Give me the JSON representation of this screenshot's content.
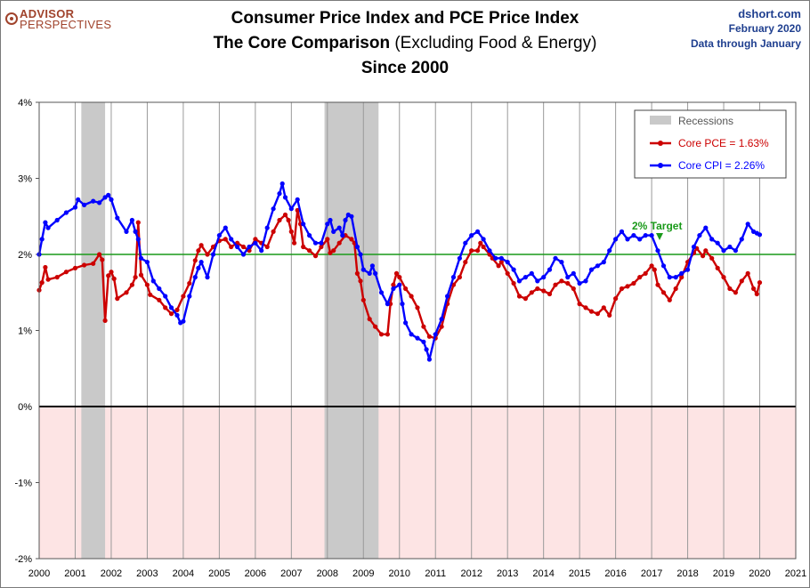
{
  "header": {
    "logo_line1": "ADVISOR",
    "logo_line2": "PERSPECTIVES",
    "title_line1": "Consumer Price Index and PCE Price Index",
    "title_line2_bold": "The Core Comparison",
    "title_line2_rest": " (Excluding Food & Energy)",
    "title_line3": "Since 2000",
    "source_site": "dshort.com",
    "source_date": "February 2020",
    "source_note": "Data through January"
  },
  "colors": {
    "pce": "#cc0000",
    "cpi": "#0000ff",
    "target": "#1a9a1a",
    "recession": "#c9c9c9",
    "negative_zone": "#fde4e4",
    "logo": "#a0432c",
    "source_text": "#1f3f8f"
  },
  "chart_data": {
    "type": "line",
    "x_ticks": [
      "2000",
      "2001",
      "2002",
      "2003",
      "2004",
      "2005",
      "2006",
      "2007",
      "2008",
      "2009",
      "2010",
      "2011",
      "2012",
      "2013",
      "2014",
      "2015",
      "2016",
      "2017",
      "2018",
      "2019",
      "2020",
      "2021"
    ],
    "y_ticks": [
      "-2%",
      "-1%",
      "0%",
      "1%",
      "2%",
      "3%",
      "4%"
    ],
    "xlim": [
      2000,
      2021
    ],
    "ylim": [
      -2,
      4
    ],
    "target_value": 2,
    "target_label": "2% Target",
    "recessions": [
      [
        2001.17,
        2001.83
      ],
      [
        2007.92,
        2009.42
      ]
    ],
    "legend": {
      "position": "top-right",
      "recession_label": "Recessions",
      "pce_label": "Core PCE = 1.63%",
      "cpi_label": "Core CPI = 2.26%"
    },
    "series": [
      {
        "name": "Core PCE",
        "points": [
          [
            2000.0,
            1.53
          ],
          [
            2000.08,
            1.63
          ],
          [
            2000.17,
            1.83
          ],
          [
            2000.25,
            1.67
          ],
          [
            2000.5,
            1.7
          ],
          [
            2000.75,
            1.77
          ],
          [
            2001.0,
            1.82
          ],
          [
            2001.25,
            1.86
          ],
          [
            2001.5,
            1.88
          ],
          [
            2001.67,
            2.0
          ],
          [
            2001.75,
            1.93
          ],
          [
            2001.83,
            1.13
          ],
          [
            2001.92,
            1.72
          ],
          [
            2002.0,
            1.77
          ],
          [
            2002.08,
            1.68
          ],
          [
            2002.17,
            1.42
          ],
          [
            2002.42,
            1.5
          ],
          [
            2002.58,
            1.6
          ],
          [
            2002.67,
            1.7
          ],
          [
            2002.75,
            2.42
          ],
          [
            2002.83,
            1.73
          ],
          [
            2003.0,
            1.6
          ],
          [
            2003.08,
            1.47
          ],
          [
            2003.33,
            1.4
          ],
          [
            2003.5,
            1.3
          ],
          [
            2003.67,
            1.22
          ],
          [
            2003.83,
            1.27
          ],
          [
            2004.0,
            1.45
          ],
          [
            2004.17,
            1.62
          ],
          [
            2004.33,
            1.92
          ],
          [
            2004.42,
            2.05
          ],
          [
            2004.5,
            2.12
          ],
          [
            2004.67,
            2.0
          ],
          [
            2004.83,
            2.1
          ],
          [
            2005.0,
            2.18
          ],
          [
            2005.17,
            2.2
          ],
          [
            2005.33,
            2.1
          ],
          [
            2005.5,
            2.15
          ],
          [
            2005.67,
            2.1
          ],
          [
            2005.83,
            2.05
          ],
          [
            2006.0,
            2.2
          ],
          [
            2006.17,
            2.15
          ],
          [
            2006.33,
            2.1
          ],
          [
            2006.5,
            2.3
          ],
          [
            2006.67,
            2.45
          ],
          [
            2006.83,
            2.52
          ],
          [
            2006.92,
            2.45
          ],
          [
            2007.0,
            2.3
          ],
          [
            2007.08,
            2.15
          ],
          [
            2007.17,
            2.58
          ],
          [
            2007.25,
            2.4
          ],
          [
            2007.33,
            2.1
          ],
          [
            2007.5,
            2.05
          ],
          [
            2007.67,
            1.98
          ],
          [
            2007.83,
            2.1
          ],
          [
            2008.0,
            2.2
          ],
          [
            2008.08,
            2.02
          ],
          [
            2008.17,
            2.05
          ],
          [
            2008.33,
            2.15
          ],
          [
            2008.5,
            2.25
          ],
          [
            2008.67,
            2.2
          ],
          [
            2008.75,
            2.15
          ],
          [
            2008.83,
            1.75
          ],
          [
            2008.92,
            1.65
          ],
          [
            2009.0,
            1.4
          ],
          [
            2009.17,
            1.15
          ],
          [
            2009.33,
            1.05
          ],
          [
            2009.5,
            0.95
          ],
          [
            2009.67,
            0.95
          ],
          [
            2009.75,
            1.35
          ],
          [
            2009.83,
            1.6
          ],
          [
            2009.92,
            1.75
          ],
          [
            2010.0,
            1.7
          ],
          [
            2010.17,
            1.55
          ],
          [
            2010.33,
            1.45
          ],
          [
            2010.5,
            1.3
          ],
          [
            2010.67,
            1.05
          ],
          [
            2010.83,
            0.92
          ],
          [
            2011.0,
            0.9
          ],
          [
            2011.17,
            1.05
          ],
          [
            2011.33,
            1.35
          ],
          [
            2011.5,
            1.6
          ],
          [
            2011.67,
            1.7
          ],
          [
            2011.83,
            1.9
          ],
          [
            2012.0,
            2.05
          ],
          [
            2012.17,
            2.05
          ],
          [
            2012.25,
            2.15
          ],
          [
            2012.33,
            2.1
          ],
          [
            2012.5,
            2.0
          ],
          [
            2012.58,
            1.95
          ],
          [
            2012.75,
            1.85
          ],
          [
            2012.83,
            1.9
          ],
          [
            2013.0,
            1.75
          ],
          [
            2013.17,
            1.62
          ],
          [
            2013.33,
            1.45
          ],
          [
            2013.5,
            1.42
          ],
          [
            2013.67,
            1.5
          ],
          [
            2013.83,
            1.55
          ],
          [
            2014.0,
            1.52
          ],
          [
            2014.17,
            1.48
          ],
          [
            2014.33,
            1.6
          ],
          [
            2014.5,
            1.65
          ],
          [
            2014.67,
            1.62
          ],
          [
            2014.83,
            1.55
          ],
          [
            2015.0,
            1.35
          ],
          [
            2015.17,
            1.3
          ],
          [
            2015.33,
            1.25
          ],
          [
            2015.5,
            1.22
          ],
          [
            2015.67,
            1.3
          ],
          [
            2015.83,
            1.2
          ],
          [
            2016.0,
            1.42
          ],
          [
            2016.17,
            1.55
          ],
          [
            2016.33,
            1.58
          ],
          [
            2016.5,
            1.62
          ],
          [
            2016.67,
            1.7
          ],
          [
            2016.83,
            1.75
          ],
          [
            2017.0,
            1.85
          ],
          [
            2017.08,
            1.8
          ],
          [
            2017.17,
            1.6
          ],
          [
            2017.33,
            1.5
          ],
          [
            2017.5,
            1.4
          ],
          [
            2017.67,
            1.55
          ],
          [
            2017.83,
            1.7
          ],
          [
            2018.0,
            1.9
          ],
          [
            2018.17,
            2.02
          ],
          [
            2018.25,
            2.08
          ],
          [
            2018.42,
            1.98
          ],
          [
            2018.5,
            2.05
          ],
          [
            2018.67,
            1.95
          ],
          [
            2018.83,
            1.82
          ],
          [
            2019.0,
            1.7
          ],
          [
            2019.17,
            1.55
          ],
          [
            2019.33,
            1.5
          ],
          [
            2019.5,
            1.65
          ],
          [
            2019.67,
            1.75
          ],
          [
            2019.83,
            1.55
          ],
          [
            2019.92,
            1.48
          ],
          [
            2020.0,
            1.63
          ]
        ]
      },
      {
        "name": "Core CPI",
        "points": [
          [
            2000.0,
            2.0
          ],
          [
            2000.08,
            2.2
          ],
          [
            2000.17,
            2.42
          ],
          [
            2000.25,
            2.35
          ],
          [
            2000.5,
            2.45
          ],
          [
            2000.75,
            2.55
          ],
          [
            2001.0,
            2.62
          ],
          [
            2001.08,
            2.72
          ],
          [
            2001.25,
            2.65
          ],
          [
            2001.5,
            2.7
          ],
          [
            2001.67,
            2.68
          ],
          [
            2001.83,
            2.75
          ],
          [
            2001.92,
            2.78
          ],
          [
            2002.0,
            2.72
          ],
          [
            2002.17,
            2.48
          ],
          [
            2002.42,
            2.3
          ],
          [
            2002.58,
            2.45
          ],
          [
            2002.67,
            2.3
          ],
          [
            2002.75,
            2.2
          ],
          [
            2002.83,
            1.95
          ],
          [
            2003.0,
            1.9
          ],
          [
            2003.17,
            1.65
          ],
          [
            2003.33,
            1.55
          ],
          [
            2003.5,
            1.45
          ],
          [
            2003.67,
            1.3
          ],
          [
            2003.83,
            1.2
          ],
          [
            2003.92,
            1.1
          ],
          [
            2004.0,
            1.12
          ],
          [
            2004.17,
            1.45
          ],
          [
            2004.33,
            1.7
          ],
          [
            2004.42,
            1.82
          ],
          [
            2004.5,
            1.9
          ],
          [
            2004.67,
            1.7
          ],
          [
            2004.83,
            2.0
          ],
          [
            2005.0,
            2.25
          ],
          [
            2005.17,
            2.35
          ],
          [
            2005.33,
            2.2
          ],
          [
            2005.5,
            2.1
          ],
          [
            2005.67,
            2.0
          ],
          [
            2005.83,
            2.1
          ],
          [
            2006.0,
            2.15
          ],
          [
            2006.17,
            2.05
          ],
          [
            2006.33,
            2.35
          ],
          [
            2006.5,
            2.6
          ],
          [
            2006.67,
            2.8
          ],
          [
            2006.75,
            2.93
          ],
          [
            2006.83,
            2.75
          ],
          [
            2007.0,
            2.6
          ],
          [
            2007.17,
            2.72
          ],
          [
            2007.33,
            2.4
          ],
          [
            2007.5,
            2.25
          ],
          [
            2007.67,
            2.15
          ],
          [
            2007.83,
            2.15
          ],
          [
            2008.0,
            2.4
          ],
          [
            2008.08,
            2.45
          ],
          [
            2008.17,
            2.3
          ],
          [
            2008.33,
            2.35
          ],
          [
            2008.42,
            2.25
          ],
          [
            2008.5,
            2.45
          ],
          [
            2008.58,
            2.52
          ],
          [
            2008.67,
            2.5
          ],
          [
            2008.83,
            2.1
          ],
          [
            2008.92,
            2.0
          ],
          [
            2009.0,
            1.8
          ],
          [
            2009.17,
            1.75
          ],
          [
            2009.25,
            1.85
          ],
          [
            2009.33,
            1.75
          ],
          [
            2009.5,
            1.5
          ],
          [
            2009.67,
            1.35
          ],
          [
            2009.83,
            1.55
          ],
          [
            2010.0,
            1.6
          ],
          [
            2010.08,
            1.35
          ],
          [
            2010.17,
            1.1
          ],
          [
            2010.33,
            0.95
          ],
          [
            2010.5,
            0.9
          ],
          [
            2010.67,
            0.85
          ],
          [
            2010.75,
            0.75
          ],
          [
            2010.83,
            0.62
          ],
          [
            2011.0,
            0.95
          ],
          [
            2011.17,
            1.15
          ],
          [
            2011.33,
            1.45
          ],
          [
            2011.5,
            1.7
          ],
          [
            2011.67,
            1.95
          ],
          [
            2011.83,
            2.15
          ],
          [
            2012.0,
            2.25
          ],
          [
            2012.17,
            2.3
          ],
          [
            2012.33,
            2.2
          ],
          [
            2012.5,
            2.05
          ],
          [
            2012.67,
            1.95
          ],
          [
            2012.83,
            1.95
          ],
          [
            2013.0,
            1.9
          ],
          [
            2013.17,
            1.8
          ],
          [
            2013.33,
            1.65
          ],
          [
            2013.5,
            1.7
          ],
          [
            2013.67,
            1.75
          ],
          [
            2013.83,
            1.65
          ],
          [
            2014.0,
            1.7
          ],
          [
            2014.17,
            1.8
          ],
          [
            2014.33,
            1.95
          ],
          [
            2014.5,
            1.9
          ],
          [
            2014.67,
            1.7
          ],
          [
            2014.83,
            1.75
          ],
          [
            2015.0,
            1.62
          ],
          [
            2015.17,
            1.65
          ],
          [
            2015.33,
            1.8
          ],
          [
            2015.5,
            1.85
          ],
          [
            2015.67,
            1.9
          ],
          [
            2015.83,
            2.05
          ],
          [
            2016.0,
            2.2
          ],
          [
            2016.17,
            2.3
          ],
          [
            2016.33,
            2.2
          ],
          [
            2016.5,
            2.25
          ],
          [
            2016.67,
            2.2
          ],
          [
            2016.83,
            2.25
          ],
          [
            2017.0,
            2.25
          ],
          [
            2017.17,
            2.05
          ],
          [
            2017.33,
            1.85
          ],
          [
            2017.5,
            1.7
          ],
          [
            2017.67,
            1.7
          ],
          [
            2017.83,
            1.75
          ],
          [
            2018.0,
            1.8
          ],
          [
            2018.17,
            2.1
          ],
          [
            2018.33,
            2.25
          ],
          [
            2018.5,
            2.35
          ],
          [
            2018.67,
            2.2
          ],
          [
            2018.83,
            2.15
          ],
          [
            2019.0,
            2.05
          ],
          [
            2019.17,
            2.1
          ],
          [
            2019.33,
            2.05
          ],
          [
            2019.5,
            2.2
          ],
          [
            2019.67,
            2.4
          ],
          [
            2019.83,
            2.3
          ],
          [
            2019.92,
            2.28
          ],
          [
            2020.0,
            2.26
          ]
        ]
      }
    ]
  }
}
